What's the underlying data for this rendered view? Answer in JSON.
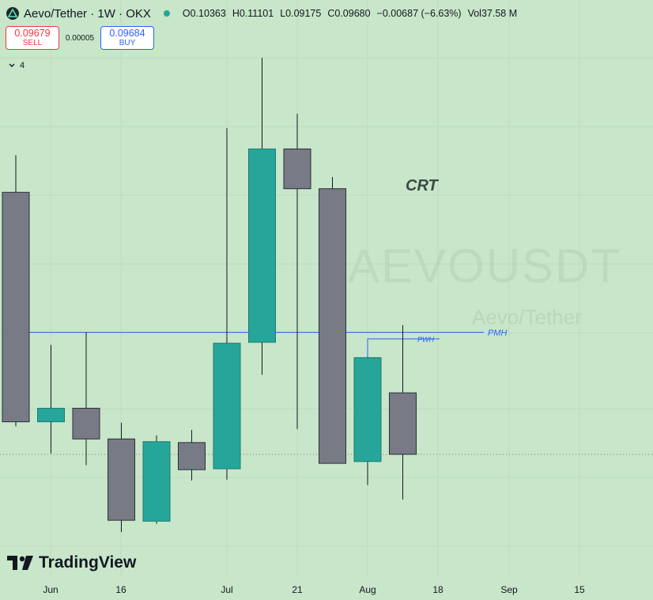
{
  "header": {
    "symbol_title": "Aevo/Tether · 1W · OKX",
    "ohlc": {
      "open_label": "O",
      "open": "0.10363",
      "high_label": "H",
      "high": "0.11101",
      "low_label": "L",
      "low": "0.09175",
      "close_label": "C",
      "close": "0.09680",
      "change": "−0.00687 (−6.63%)",
      "vol_label": "Vol",
      "vol": "37.58 M"
    }
  },
  "trade": {
    "sell_price": "0.09679",
    "sell_label": "SELL",
    "spread": "0.00005",
    "buy_price": "0.09684",
    "buy_label": "BUY"
  },
  "indicators": {
    "count": "4"
  },
  "watermark": {
    "symbol": "AEVOUSDT",
    "name": "Aevo/Tether"
  },
  "branding": {
    "name": "TradingView"
  },
  "colors": {
    "background": "#c8e6c9",
    "up": "#26a69a",
    "down": "#787b86",
    "level_line": "#2962ff",
    "sell": "#f23645",
    "buy": "#2962ff"
  },
  "chart_data": {
    "type": "candlestick",
    "timeframe": "1W",
    "x_axis_labels": [
      "Jun",
      "16",
      "Jul",
      "21",
      "Aug",
      "18",
      "Sep",
      "15"
    ],
    "candles": [
      {
        "week": 1,
        "open": 0.1258,
        "high": 0.1299,
        "low": 0.0999,
        "close": 0.1004
      },
      {
        "week": 2,
        "open": 0.1004,
        "high": 0.1089,
        "low": 0.0969,
        "close": 0.1019
      },
      {
        "week": 3,
        "open": 0.1019,
        "high": 0.1103,
        "low": 0.0956,
        "close": 0.0985
      },
      {
        "week": 4,
        "open": 0.0985,
        "high": 0.1003,
        "low": 0.0882,
        "close": 0.0895
      },
      {
        "week": 5,
        "open": 0.0894,
        "high": 0.0989,
        "low": 0.0891,
        "close": 0.0982
      },
      {
        "week": 6,
        "open": 0.0981,
        "high": 0.0995,
        "low": 0.0939,
        "close": 0.0951
      },
      {
        "week": 7,
        "open": 0.0952,
        "high": 0.1329,
        "low": 0.094,
        "close": 0.1091
      },
      {
        "week": 8,
        "open": 0.1092,
        "high": 0.1407,
        "low": 0.1056,
        "close": 0.1306
      },
      {
        "week": 9,
        "open": 0.1306,
        "high": 0.1345,
        "low": 0.0996,
        "close": 0.1262
      },
      {
        "week": 10,
        "open": 0.1262,
        "high": 0.1275,
        "low": 0.0961,
        "close": 0.0958
      },
      {
        "week": 11,
        "open": 0.096,
        "high": 0.1076,
        "low": 0.0934,
        "close": 0.1075
      },
      {
        "week": 12,
        "open": 0.1036,
        "high": 0.1111,
        "low": 0.0918,
        "close": 0.0968
      }
    ],
    "last_price": 0.0968,
    "annotations": [
      {
        "text": "CRT",
        "type": "label"
      },
      {
        "text": "PMH",
        "type": "horizontal_level",
        "price": 0.1103
      },
      {
        "text": "PWH",
        "type": "horizontal_level",
        "price": 0.1101
      }
    ]
  }
}
